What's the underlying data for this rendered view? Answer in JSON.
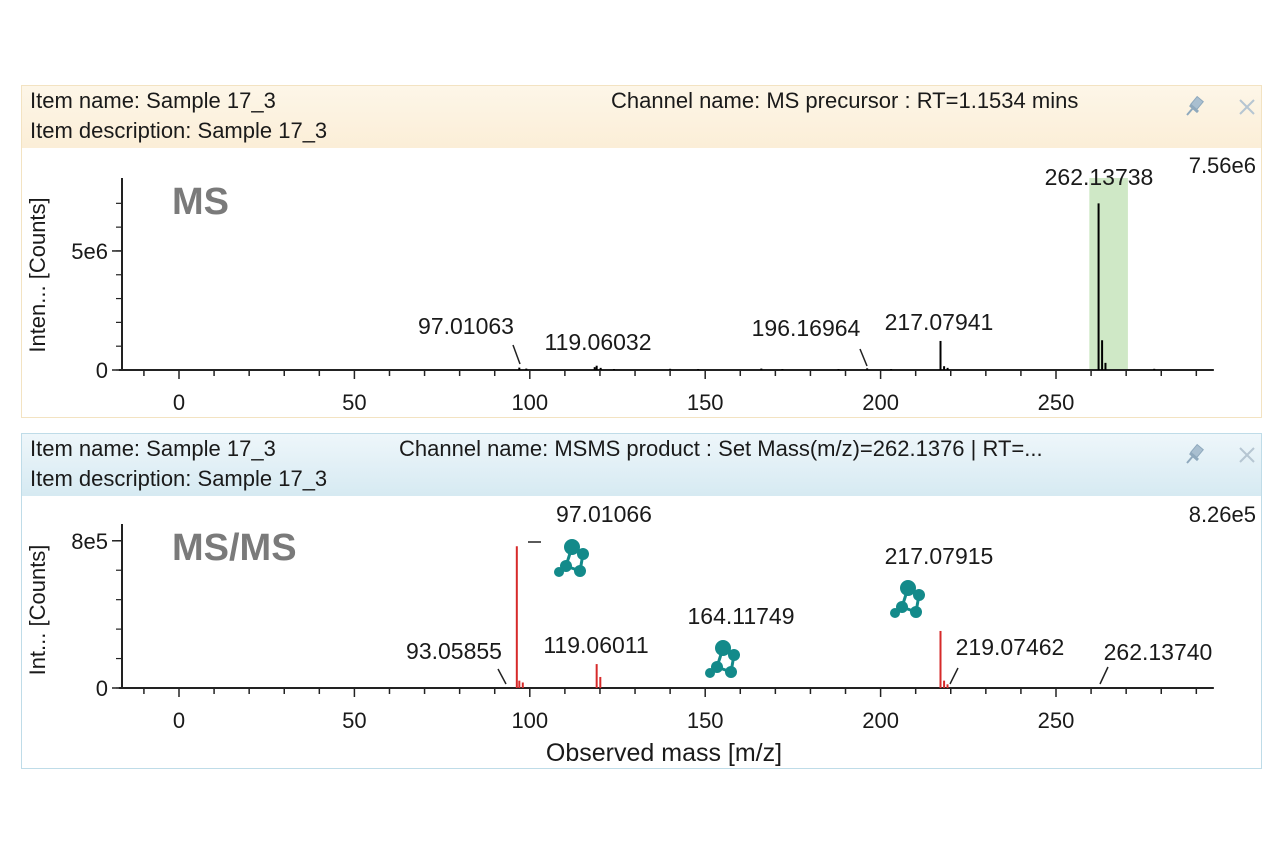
{
  "panels": [
    {
      "item_name": "Item name: Sample 17_3",
      "item_description": "Item description: Sample 17_3",
      "channel_name": "Channel name: MS precursor : RT=1.1534 mins",
      "pin_icon": "pin-icon",
      "close_icon": "close-icon"
    },
    {
      "item_name": "Item name: Sample 17_3",
      "item_description": "Item description: Sample 17_3",
      "channel_name": "Channel name: MSMS product : Set Mass(m/z)=262.1376 | RT=...",
      "pin_icon": "pin-icon",
      "close_icon": "close-icon"
    }
  ],
  "chart_data": [
    {
      "type": "bar",
      "title": "MS",
      "ylabel": "Inten... [Counts]",
      "xlabel": "",
      "max_label": "7.56e6",
      "xlim": [
        -16,
        295
      ],
      "ylim": [
        0,
        7560000
      ],
      "x_ticks": [
        0,
        50,
        100,
        150,
        200,
        250
      ],
      "y_ticks": [
        {
          "value": 0,
          "label": "0"
        },
        {
          "value": 5000000,
          "label": "5e6"
        }
      ],
      "peak_color": "#000000",
      "highlight": {
        "from": 259.5,
        "to": 270.5,
        "color": "#cfe8c6"
      },
      "peaks": [
        {
          "x": 97.01063,
          "y": 100000
        },
        {
          "x": 99.0,
          "y": 60000
        },
        {
          "x": 118.5,
          "y": 120000
        },
        {
          "x": 119.06032,
          "y": 180000
        },
        {
          "x": 120.2,
          "y": 90000
        },
        {
          "x": 124.0,
          "y": 40000
        },
        {
          "x": 140.0,
          "y": 50000
        },
        {
          "x": 148.0,
          "y": 40000
        },
        {
          "x": 166.0,
          "y": 60000
        },
        {
          "x": 172.0,
          "y": 40000
        },
        {
          "x": 188.0,
          "y": 40000
        },
        {
          "x": 196.16964,
          "y": 70000
        },
        {
          "x": 203.0,
          "y": 40000
        },
        {
          "x": 217.07941,
          "y": 1220000
        },
        {
          "x": 218.1,
          "y": 160000
        },
        {
          "x": 219.1,
          "y": 90000
        },
        {
          "x": 262.13738,
          "y": 7000000
        },
        {
          "x": 263.14,
          "y": 1250000
        },
        {
          "x": 264.1,
          "y": 300000
        },
        {
          "x": 278.0,
          "y": 50000
        }
      ],
      "annotations": [
        {
          "text": "262.13738",
          "x": 262.13738
        },
        {
          "text": "217.07941",
          "x": 217.07941
        },
        {
          "text": "196.16964",
          "x": 196.16964
        },
        {
          "text": "119.06032",
          "x": 119.06032
        },
        {
          "text": "97.01063",
          "x": 97.01063
        }
      ]
    },
    {
      "type": "bar",
      "title": "MS/MS",
      "ylabel": "Int... [Counts]",
      "xlabel": "Observed mass [m/z]",
      "max_label": "8.26e5",
      "xlim": [
        -16,
        295
      ],
      "ylim": [
        0,
        826000
      ],
      "x_ticks": [
        0,
        50,
        100,
        150,
        200,
        250
      ],
      "y_ticks": [
        {
          "value": 0,
          "label": "0"
        },
        {
          "value": 800000,
          "label": "8e5"
        }
      ],
      "peak_color": "#d62a2a",
      "structure_color": "#138a8a",
      "peaks": [
        {
          "x": 96.3,
          "y": 770000
        },
        {
          "x": 97.01066,
          "y": 40000
        },
        {
          "x": 98.0,
          "y": 30000
        },
        {
          "x": 119.06011,
          "y": 130000
        },
        {
          "x": 120.1,
          "y": 60000
        },
        {
          "x": 217.07915,
          "y": 310000
        },
        {
          "x": 218.1,
          "y": 40000
        },
        {
          "x": 219.07462,
          "y": 20000
        }
      ],
      "annotations": [
        {
          "text": "97.01066",
          "x": 97.01066
        },
        {
          "text": "93.05855",
          "x": 93.05855
        },
        {
          "text": "119.06011",
          "x": 119.06011
        },
        {
          "text": "164.11749",
          "x": 164.11749
        },
        {
          "text": "217.07915",
          "x": 217.07915
        },
        {
          "text": "219.07462",
          "x": 219.07462
        },
        {
          "text": "262.13740",
          "x": 262.1374
        }
      ]
    }
  ]
}
